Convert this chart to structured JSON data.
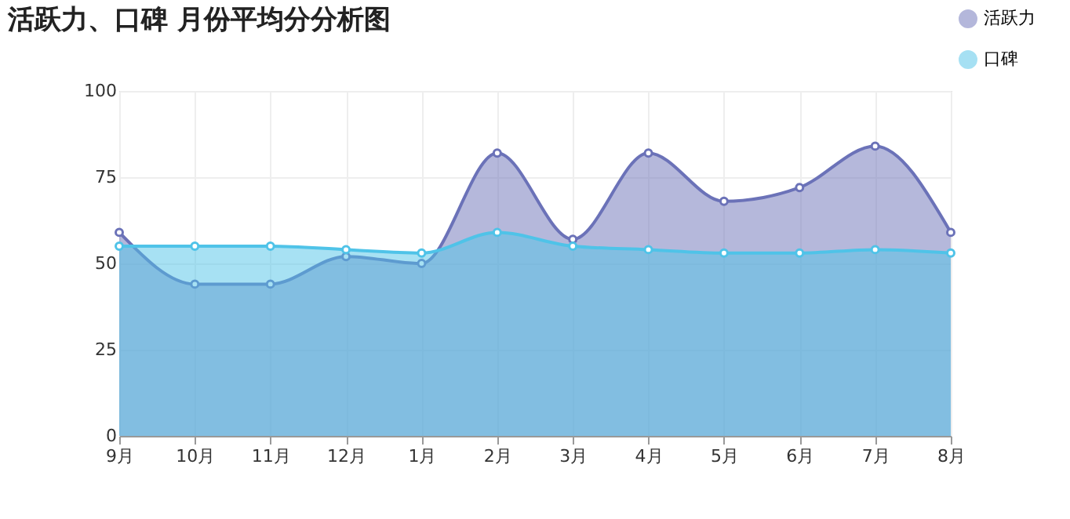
{
  "chart_data": {
    "type": "area",
    "title": "活跃力、口碑 月份平均分分析图",
    "categories": [
      "9月",
      "10月",
      "11月",
      "12月",
      "1月",
      "2月",
      "3月",
      "4月",
      "5月",
      "6月",
      "7月",
      "8月"
    ],
    "series": [
      {
        "name": "活跃力",
        "color": "#6b72b8",
        "values": [
          59,
          44,
          44,
          52,
          50,
          82,
          57,
          82,
          68,
          72,
          84,
          59
        ]
      },
      {
        "name": "口碑",
        "color": "#4fc3e8",
        "values": [
          55,
          55,
          55,
          54,
          53,
          59,
          55,
          54,
          53,
          53,
          54,
          53
        ]
      }
    ],
    "ylim": [
      0,
      100
    ],
    "yticks": [
      0,
      25,
      50,
      75,
      100
    ],
    "grid": true,
    "legend": "top right",
    "marker": "circle",
    "line_style": "solid"
  }
}
